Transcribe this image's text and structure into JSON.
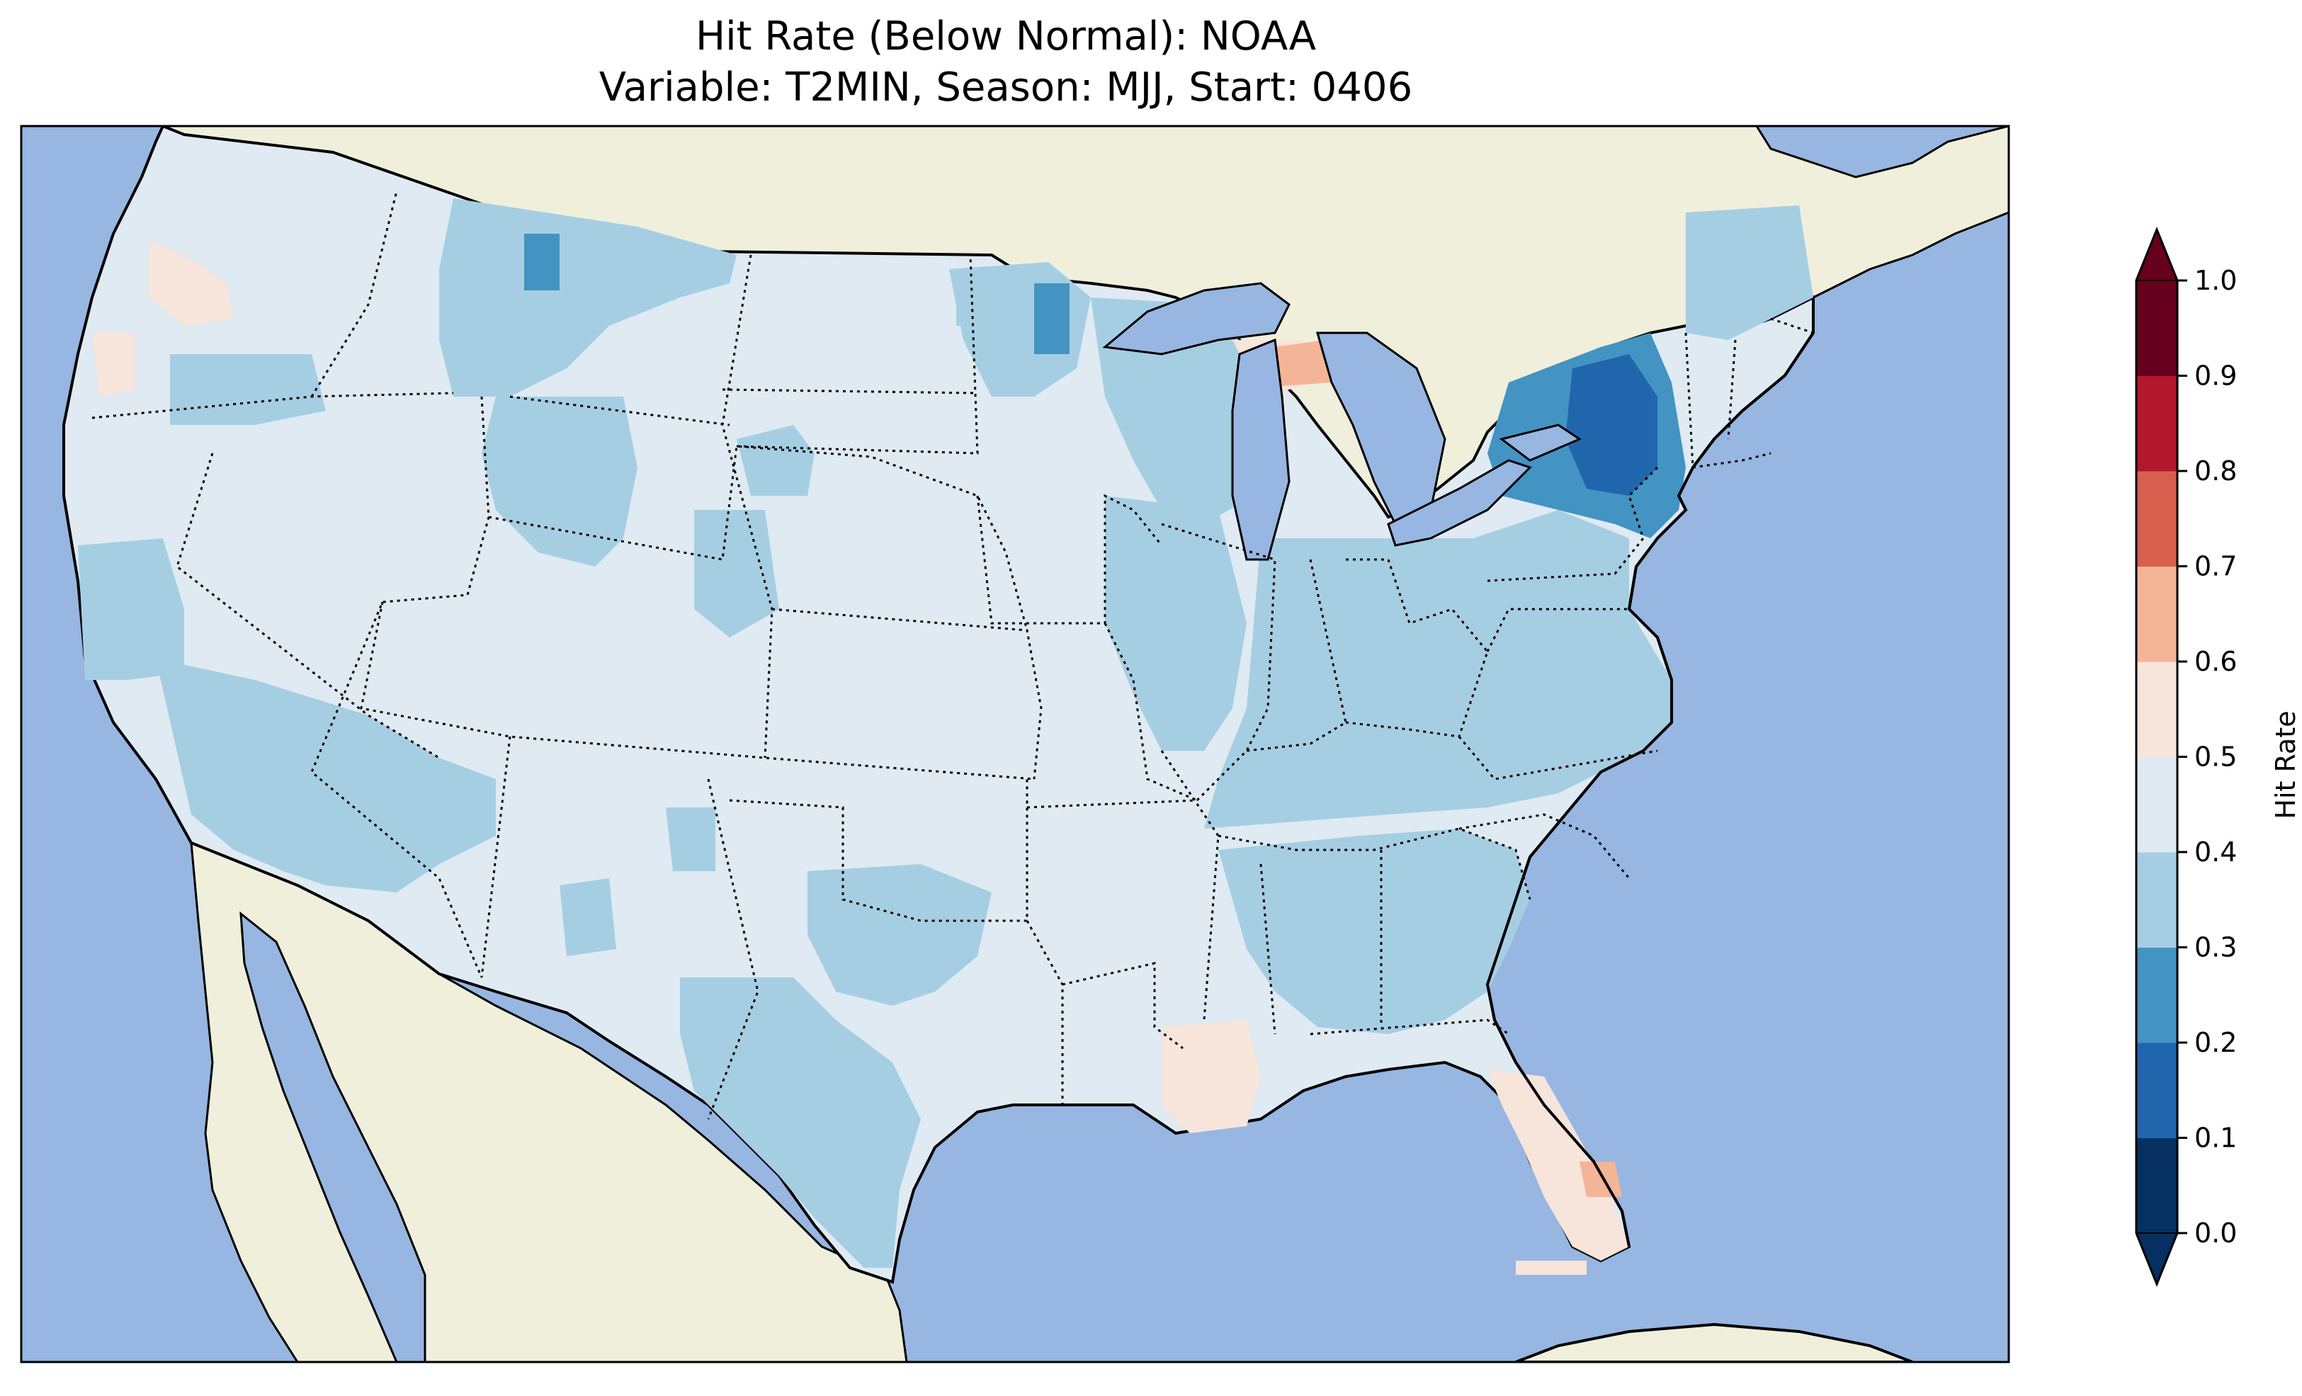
{
  "title": {
    "line1": "Hit Rate (Below Normal): NOAA",
    "line2": "Variable: T2MIN, Season: MJJ, Start: 0406"
  },
  "colorbar": {
    "label": "Hit Rate",
    "ticks": [
      "0.0",
      "0.1",
      "0.2",
      "0.3",
      "0.4",
      "0.5",
      "0.6",
      "0.7",
      "0.8",
      "0.9",
      "1.0"
    ],
    "bins": [
      {
        "range": [
          0.0,
          0.1
        ],
        "color": "#053061"
      },
      {
        "range": [
          0.1,
          0.2
        ],
        "color": "#2166ac"
      },
      {
        "range": [
          0.2,
          0.3
        ],
        "color": "#4393c3"
      },
      {
        "range": [
          0.3,
          0.4
        ],
        "color": "#a6cee3"
      },
      {
        "range": [
          0.4,
          0.5
        ],
        "color": "#dfeaf2"
      },
      {
        "range": [
          0.5,
          0.6
        ],
        "color": "#f7e4db"
      },
      {
        "range": [
          0.6,
          0.7
        ],
        "color": "#f4b497"
      },
      {
        "range": [
          0.7,
          0.8
        ],
        "color": "#d6604d"
      },
      {
        "range": [
          0.8,
          0.9
        ],
        "color": "#b2182b"
      },
      {
        "range": [
          0.9,
          1.0
        ],
        "color": "#67001f"
      }
    ],
    "extend": "both"
  },
  "map": {
    "region": "Contiguous United States",
    "ocean_color": "#97b6e1",
    "land_color": "#efefdc",
    "border_color": "#000000"
  }
}
